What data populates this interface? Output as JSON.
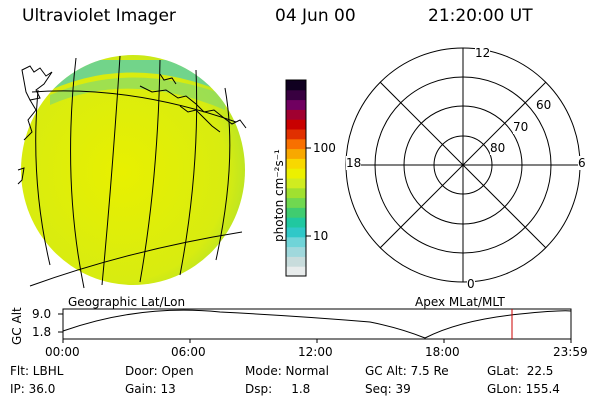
{
  "header": {
    "instrument": "Ultraviolet Imager",
    "date": "04 Jun 00",
    "time": "21:20:00 UT"
  },
  "globe": {
    "caption": "Geographic Lat/Lon"
  },
  "colorbar": {
    "unit_label": "photon cm⁻²s⁻¹",
    "ticks": [
      {
        "value": 100,
        "label": "100"
      },
      {
        "value": 10,
        "label": "10"
      }
    ],
    "colors": [
      "#e8ecec",
      "#c8dcdc",
      "#a0d8dc",
      "#70d4d8",
      "#30c8c8",
      "#20c8a0",
      "#40cc70",
      "#70d850",
      "#a0e030",
      "#d0ec20",
      "#ecf000",
      "#f8d800",
      "#f8a800",
      "#f87000",
      "#e03000",
      "#c80000",
      "#a00030",
      "#700060",
      "#380040",
      "#100020"
    ]
  },
  "polar": {
    "caption": "Apex MLat/MLT",
    "mlt_labels": {
      "top": "12",
      "left": "18",
      "right": "6",
      "bottom": "0"
    },
    "lat_labels": [
      "60",
      "70",
      "80"
    ]
  },
  "timeline": {
    "ylabel": "GC Alt",
    "y_ticks": [
      "9.0",
      "1.8"
    ],
    "x_ticks": [
      "00:00",
      "06:00",
      "12:00",
      "18:00",
      "23:59"
    ],
    "marker_color": "#cc0000"
  },
  "info": {
    "row1": {
      "flt": "Flt: LBHL",
      "door": "Door: Open",
      "mode": "Mode: Normal",
      "gcalt": "GC Alt: 7.5 Re",
      "glat": "GLat:  22.5"
    },
    "row2": {
      "ip": "IP: 36.0",
      "gain": "Gain: 13",
      "dsp": "Dsp:     1.8",
      "seq": "Seq: 39",
      "glon": "GLon: 155.4"
    }
  }
}
